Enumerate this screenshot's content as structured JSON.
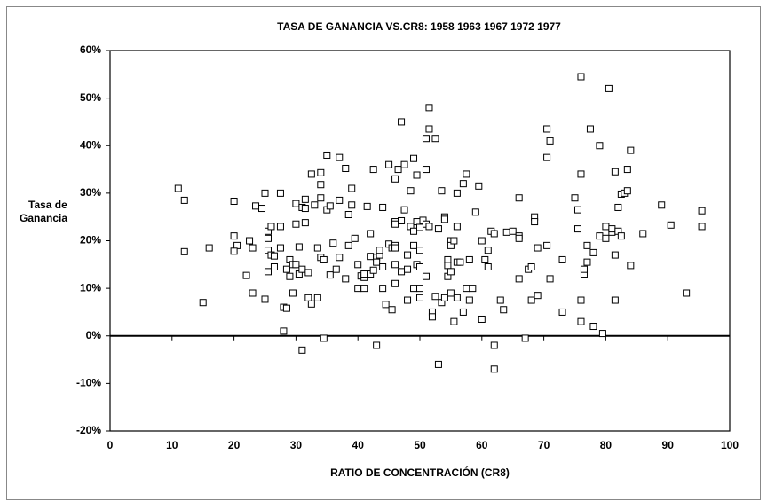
{
  "chart_data": {
    "type": "scatter",
    "title": "TASA DE GANANCIA VS.CR8:   1958 1963 1967 1972 1977",
    "xlabel": "RATIO DE CONCENTRACIÓN (CR8)",
    "ylabel": [
      "Tasa de",
      "Ganancia"
    ],
    "xlim": [
      0,
      100
    ],
    "xticks": [
      0,
      10,
      20,
      30,
      40,
      50,
      60,
      70,
      80,
      90,
      100
    ],
    "ylim": [
      -20,
      60
    ],
    "yticks": [
      {
        "value": -20,
        "label": "-20%"
      },
      {
        "value": -10,
        "label": "-10%"
      },
      {
        "value": 0,
        "label": "0%"
      },
      {
        "value": 10,
        "label": "10%"
      },
      {
        "value": 20,
        "label": "20%"
      },
      {
        "value": 30,
        "label": "30%"
      },
      {
        "value": 40,
        "label": "40%"
      },
      {
        "value": 50,
        "label": "50%"
      },
      {
        "value": 60,
        "label": "60%"
      }
    ],
    "grid": false,
    "marker": "square",
    "color": "#000000",
    "x": [
      11,
      12,
      12,
      15,
      16,
      20,
      20,
      20.5,
      20,
      22,
      22.5,
      23,
      23,
      23.5,
      24.5,
      25,
      25.5,
      25.5,
      25.5,
      25.5,
      25,
      26,
      26,
      26.5,
      26.5,
      27.5,
      27.5,
      27.5,
      28,
      28,
      28.5,
      28.5,
      29,
      29,
      29.5,
      29.5,
      30,
      30,
      30,
      30.5,
      30.5,
      31,
      31,
      31,
      31.5,
      31.5,
      31.5,
      32,
      32,
      32.5,
      32.5,
      33,
      33.5,
      33.5,
      34,
      34,
      34,
      34,
      34.5,
      34.5,
      35,
      35,
      35.5,
      35.5,
      36,
      36.5,
      37,
      37,
      37,
      38,
      38,
      38.5,
      38.5,
      39,
      39,
      39.5,
      40,
      40,
      40.5,
      41,
      41,
      41,
      41.5,
      42,
      42,
      42,
      42.5,
      42.5,
      43,
      43,
      43,
      43.5,
      43.5,
      44,
      44,
      44,
      44.5,
      45,
      45,
      45.5,
      45.5,
      46,
      46,
      46,
      46,
      46,
      46,
      46,
      46.5,
      47,
      47,
      47,
      47.5,
      47.5,
      48,
      48,
      48,
      48.5,
      48.5,
      49,
      49,
      49,
      49,
      49.5,
      49.5,
      49.5,
      50,
      50,
      50,
      50,
      50,
      50.5,
      51,
      51,
      51,
      51,
      51.5,
      51.5,
      51.5,
      52,
      52,
      52.5,
      52.5,
      53,
      53,
      53.5,
      53.5,
      54,
      54,
      54,
      54.5,
      54.5,
      54.5,
      55,
      55,
      55,
      55,
      55.5,
      55.5,
      56,
      56,
      56,
      56,
      56.5,
      57,
      57,
      57.5,
      57.5,
      58,
      58,
      58.5,
      59,
      59.5,
      60,
      60,
      60.5,
      61,
      61,
      61.5,
      62,
      62,
      62,
      63,
      63.5,
      64,
      65,
      66,
      66,
      66,
      66,
      67,
      67.5,
      68,
      68,
      68.5,
      68.5,
      69,
      69,
      70.5,
      70.5,
      70.5,
      71,
      71,
      73,
      73,
      75,
      75.5,
      75.5,
      76,
      76,
      76,
      76,
      76.5,
      76.5,
      77,
      77,
      77.5,
      78,
      78,
      79,
      79,
      79.5,
      80,
      80,
      80.5,
      81,
      81,
      81.5,
      81.5,
      81.5,
      82,
      82,
      82.5,
      82.5,
      83,
      83.5,
      83.5,
      84,
      84,
      86,
      89,
      90.5,
      93,
      95.5,
      95.5
    ],
    "values": [
      31,
      28.5,
      17.7,
      7,
      18.5,
      28.3,
      21,
      19,
      17.8,
      12.7,
      20,
      18.5,
      9,
      27.3,
      26.8,
      30,
      22,
      20.5,
      18,
      13.5,
      7.7,
      23,
      17,
      16.8,
      14.5,
      30,
      23,
      18.5,
      1,
      6,
      5.8,
      14,
      16,
      12.5,
      9,
      15,
      15,
      27.8,
      23.5,
      13,
      18.7,
      27,
      14,
      -3,
      28.7,
      26.8,
      23.8,
      13.3,
      8,
      6.7,
      34,
      27.5,
      18.5,
      8,
      34.3,
      29,
      31.8,
      16.5,
      16,
      -0.5,
      38,
      26.5,
      27.3,
      12.8,
      19.5,
      14,
      28.5,
      37.5,
      16.5,
      35.2,
      12,
      25.5,
      19,
      27.5,
      31,
      20.5,
      15,
      10,
      12.6,
      12.3,
      10,
      13,
      27.2,
      21.5,
      16.7,
      13,
      35,
      13.8,
      16.5,
      15.5,
      -2,
      17,
      18,
      27,
      14.5,
      10,
      6.6,
      36,
      19.3,
      18.5,
      5.5,
      33,
      24,
      23.5,
      19,
      18.5,
      15,
      11,
      35,
      45,
      24.2,
      13.5,
      36,
      26.5,
      17,
      14,
      7.5,
      30.5,
      23,
      37.3,
      22,
      19,
      10,
      33.8,
      24,
      15,
      22.8,
      18,
      14.5,
      10,
      8,
      24.3,
      35,
      41.5,
      23.5,
      12.5,
      48,
      43.5,
      23,
      5,
      4,
      41.5,
      8.3,
      -6,
      22.5,
      30.5,
      7,
      25,
      24.5,
      8,
      16,
      14.8,
      12.5,
      20,
      19,
      13.5,
      9,
      20,
      3,
      30,
      23,
      15.5,
      8,
      15.5,
      32,
      5,
      34,
      10,
      16,
      7.5,
      10,
      26,
      31.5,
      20,
      3.5,
      16,
      14.5,
      18,
      22,
      -2,
      -7,
      21.5,
      7.5,
      5.5,
      21.8,
      22,
      21,
      20.5,
      29,
      12,
      -0.5,
      14,
      7.5,
      14.5,
      25,
      24,
      8.5,
      18.5,
      19,
      37.5,
      43.5,
      41,
      12,
      16,
      5,
      29,
      26.5,
      22.5,
      34,
      3,
      7.5,
      54.5,
      13,
      14,
      19,
      15.5,
      43.5,
      2,
      17.5,
      40,
      21,
      0.5,
      23,
      20.5,
      52,
      21.8,
      22.5,
      34.5,
      17,
      7.5,
      27,
      22,
      21,
      29.8,
      30,
      35,
      30.5,
      39,
      14.8,
      21.5,
      27.5,
      23.3,
      9,
      26.3,
      23
    ]
  }
}
